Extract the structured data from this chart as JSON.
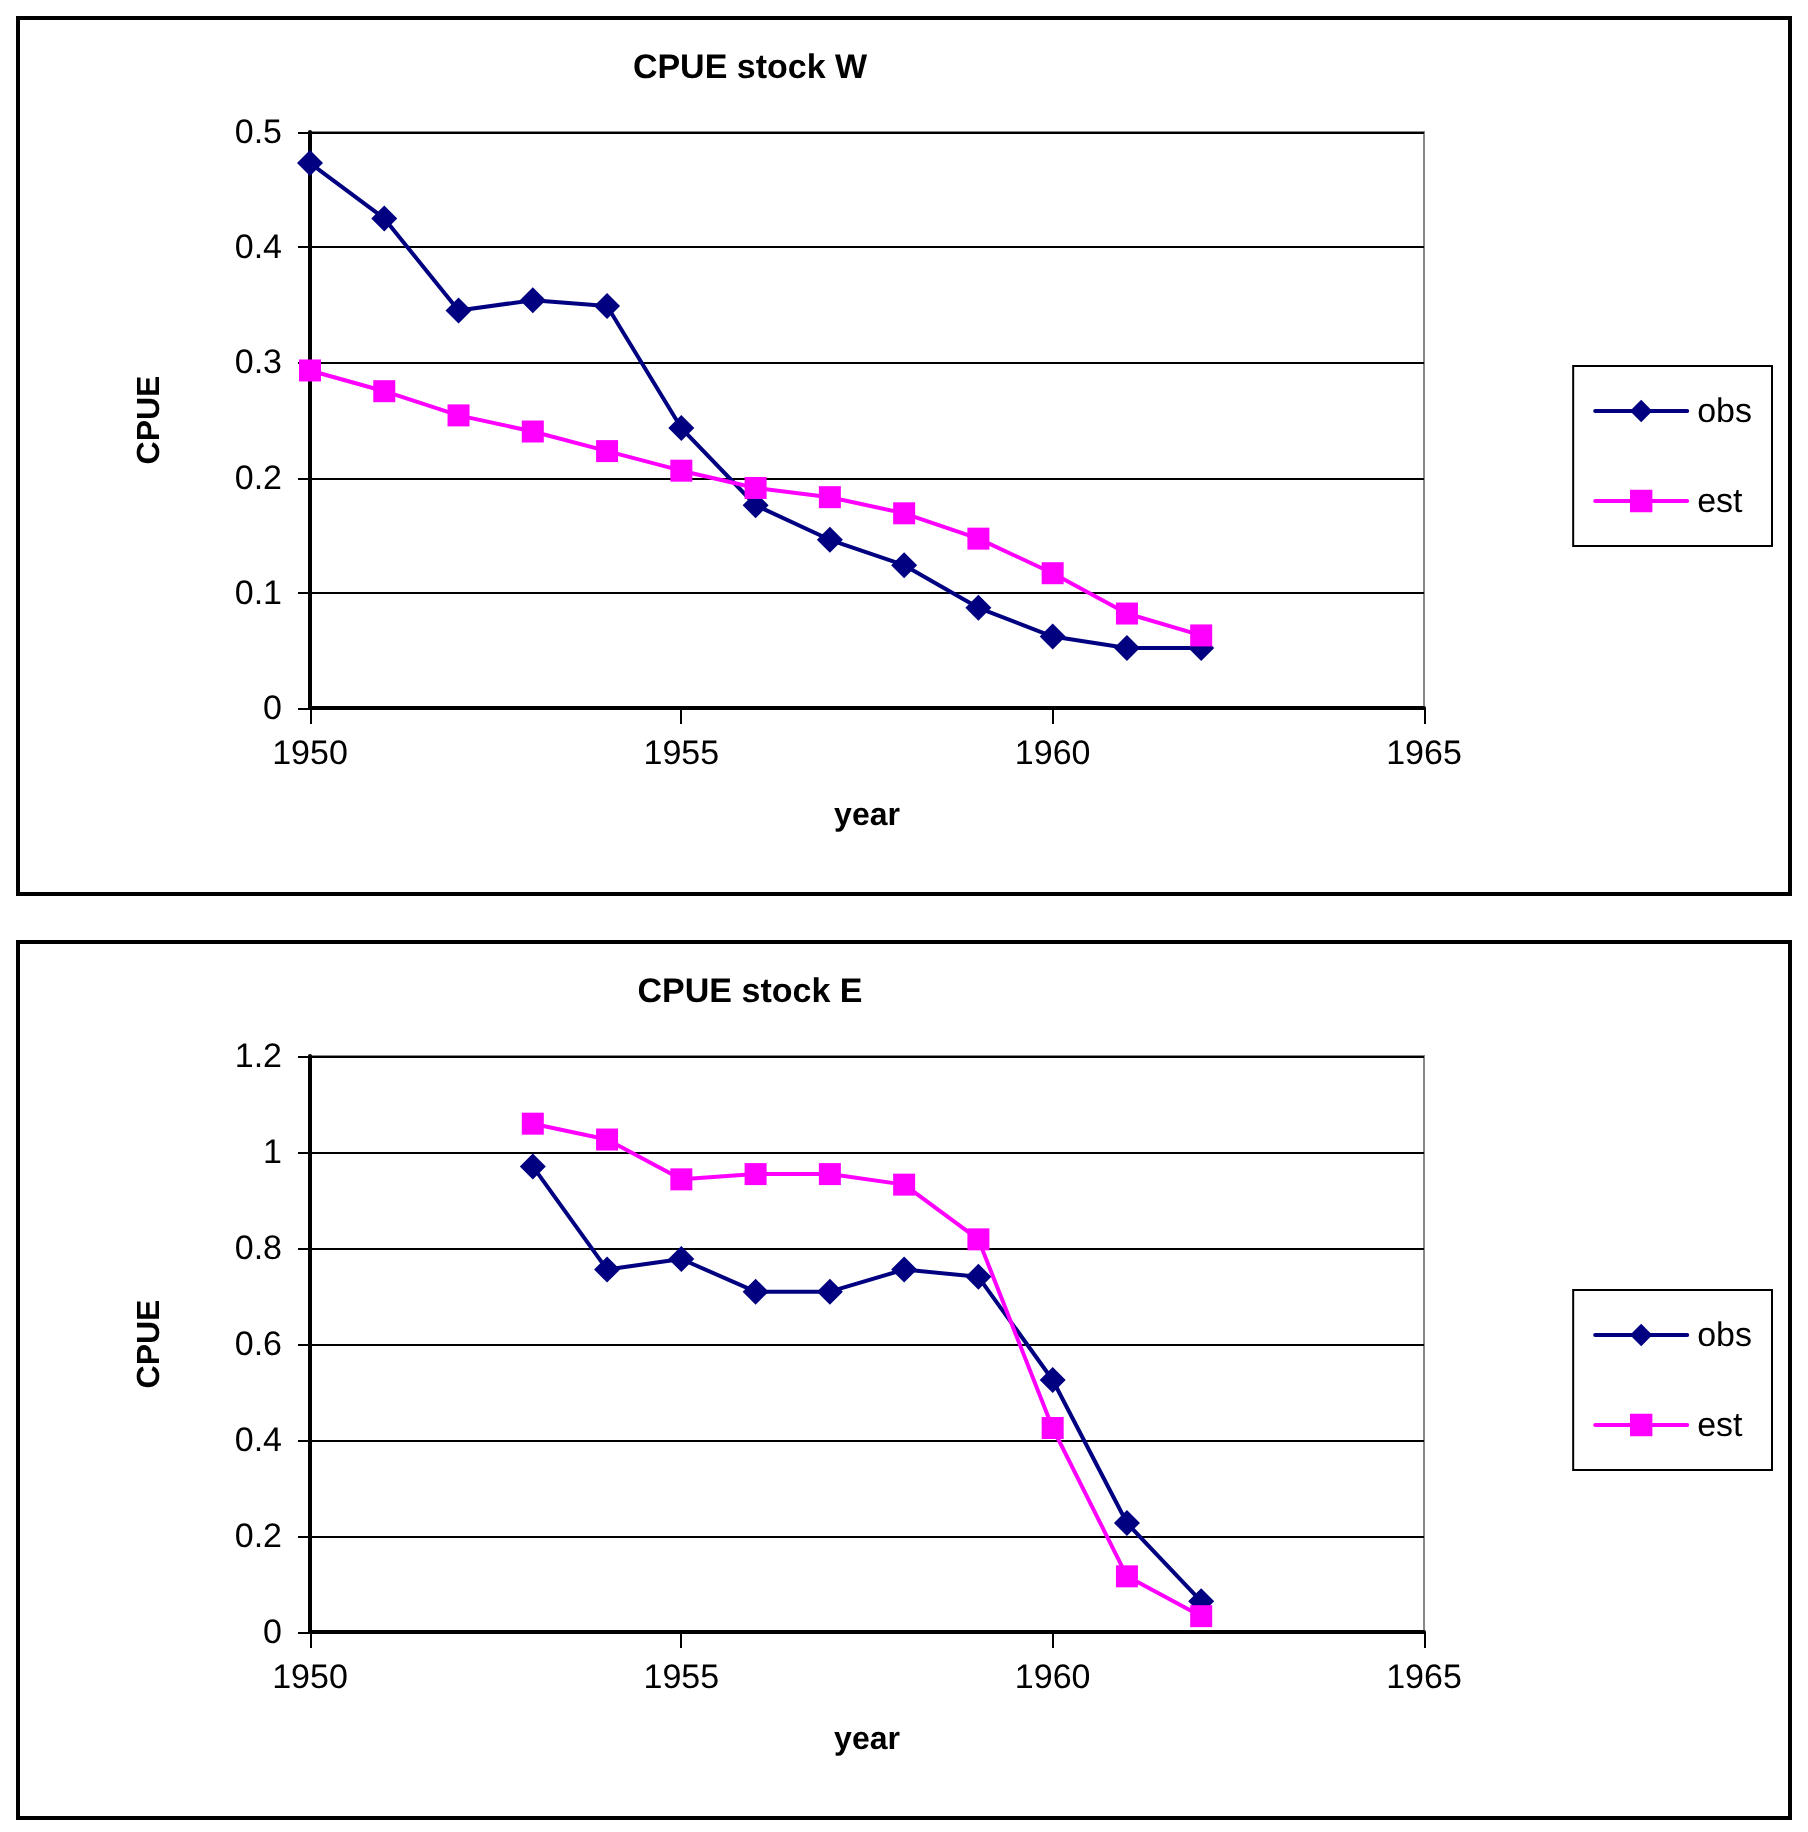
{
  "chart_data": [
    {
      "type": "line",
      "title": "CPUE stock W",
      "xlabel": "year",
      "ylabel": "CPUE",
      "x": [
        1950,
        1951,
        1952,
        1953,
        1954,
        1955,
        1956,
        1957,
        1958,
        1959,
        1960,
        1961,
        1962
      ],
      "series": [
        {
          "name": "obs",
          "color": "#000080",
          "marker": "diamond",
          "values": [
            0.473,
            0.425,
            0.345,
            0.354,
            0.349,
            0.243,
            0.176,
            0.146,
            0.124,
            0.087,
            0.062,
            0.052,
            0.052
          ]
        },
        {
          "name": "est",
          "color": "#ff00ff",
          "marker": "square",
          "values": [
            0.293,
            0.275,
            0.254,
            0.24,
            0.223,
            0.206,
            0.191,
            0.183,
            0.169,
            0.147,
            0.117,
            0.082,
            0.063
          ]
        }
      ],
      "xlim": [
        1950,
        1965
      ],
      "xticks": [
        1950,
        1955,
        1960,
        1965
      ],
      "ylim": [
        0,
        0.5
      ],
      "yticks": [
        0,
        0.1,
        0.2,
        0.3,
        0.4,
        0.5
      ],
      "grid": "y",
      "legend": "right",
      "line_style": "solid"
    },
    {
      "type": "line",
      "title": "CPUE stock E",
      "xlabel": "year",
      "ylabel": "CPUE",
      "x": [
        1953,
        1954,
        1955,
        1956,
        1957,
        1958,
        1959,
        1960,
        1961,
        1962
      ],
      "series": [
        {
          "name": "obs",
          "color": "#000080",
          "marker": "diamond",
          "values": [
            0.97,
            0.755,
            0.777,
            0.709,
            0.709,
            0.755,
            0.74,
            0.525,
            0.227,
            0.064
          ]
        },
        {
          "name": "est",
          "color": "#ff00ff",
          "marker": "square",
          "values": [
            1.059,
            1.026,
            0.943,
            0.954,
            0.954,
            0.932,
            0.818,
            0.425,
            0.116,
            0.033
          ]
        }
      ],
      "xlim": [
        1950,
        1965
      ],
      "xticks": [
        1950,
        1955,
        1960,
        1965
      ],
      "ylim": [
        0,
        1.2
      ],
      "yticks": [
        0,
        0.2,
        0.4,
        0.6,
        0.8,
        1,
        1.2
      ],
      "grid": "y",
      "legend": "right",
      "line_style": "solid"
    }
  ]
}
